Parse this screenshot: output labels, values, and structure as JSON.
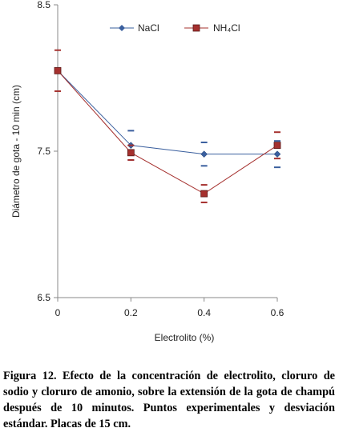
{
  "chart_data": {
    "type": "line",
    "x": [
      0,
      0.2,
      0.4,
      0.6
    ],
    "x_ticks": [
      "0",
      "0.2",
      "0.4",
      "0.6"
    ],
    "xlim": [
      0,
      0.6
    ],
    "ylim": [
      6.5,
      8.5
    ],
    "y_ticks": [
      "6.5",
      "7.5",
      "8.5"
    ],
    "xlabel": "Electrolito (%)",
    "ylabel": "Diámetro de gota - 10 min (cm)",
    "legend_position": "top-center",
    "grid": false,
    "series": [
      {
        "name": "NaCl",
        "marker": "diamond",
        "color": "#3a5f9e",
        "values": [
          8.05,
          7.54,
          7.48,
          7.48
        ],
        "error": [
          0.0,
          0.1,
          0.08,
          0.09
        ]
      },
      {
        "name": "NH₄Cl",
        "marker": "square",
        "color": "#a5302e",
        "values": [
          8.05,
          7.49,
          7.21,
          7.54
        ],
        "error": [
          0.14,
          0.05,
          0.06,
          0.09
        ]
      }
    ]
  },
  "caption": "Figura 12. Efecto de la concentración de electrolito, cloruro de sodio y cloruro de amonio, sobre la extensión de la gota de champú después de 10 minutos. Puntos experimentales y desviación estándar. Placas de 15 cm."
}
